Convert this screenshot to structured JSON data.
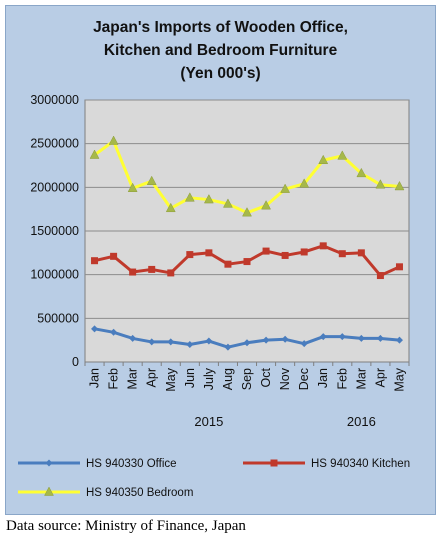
{
  "chart_data": {
    "type": "line",
    "title_lines": [
      "Japan's Imports of  Wooden  Office,",
      "Kitchen and Bedroom Furniture",
      "(Yen 000's)"
    ],
    "categories": [
      "Jan",
      "Feb",
      "Mar",
      "Apr",
      "May",
      "Jun",
      "July",
      "Aug",
      "Sep",
      "Oct",
      "Nov",
      "Dec",
      "Jan",
      "Feb",
      "Mar",
      "Apr",
      "May"
    ],
    "year_labels": [
      {
        "label": "2015",
        "index": 6
      },
      {
        "label": "2016",
        "index": 14
      }
    ],
    "ylim": [
      0,
      3000000
    ],
    "yticks": [
      "0",
      "500000",
      "1000000",
      "1500000",
      "2000000",
      "2500000",
      "3000000"
    ],
    "grid": true,
    "legend_position": "bottom",
    "series": [
      {
        "name": "HS 940330 Office",
        "color": "#4a7dbe",
        "marker": "diamond",
        "values": [
          380000,
          340000,
          270000,
          230000,
          230000,
          200000,
          240000,
          170000,
          220000,
          250000,
          260000,
          210000,
          290000,
          290000,
          270000,
          270000,
          250000
        ]
      },
      {
        "name": "HS 940340 Kitchen",
        "color": "#c0392b",
        "marker": "square",
        "values": [
          1160000,
          1210000,
          1030000,
          1060000,
          1020000,
          1230000,
          1250000,
          1120000,
          1150000,
          1270000,
          1220000,
          1260000,
          1330000,
          1240000,
          1250000,
          990000,
          1090000
        ]
      },
      {
        "name": "HS 940350 Bedroom",
        "color": "#ffff33",
        "marker": "triangle",
        "values": [
          2370000,
          2530000,
          1990000,
          2070000,
          1760000,
          1880000,
          1860000,
          1810000,
          1710000,
          1790000,
          1980000,
          2040000,
          2310000,
          2360000,
          2160000,
          2030000,
          2010000
        ]
      }
    ]
  },
  "source": "Data source: Ministry of Finance, Japan"
}
